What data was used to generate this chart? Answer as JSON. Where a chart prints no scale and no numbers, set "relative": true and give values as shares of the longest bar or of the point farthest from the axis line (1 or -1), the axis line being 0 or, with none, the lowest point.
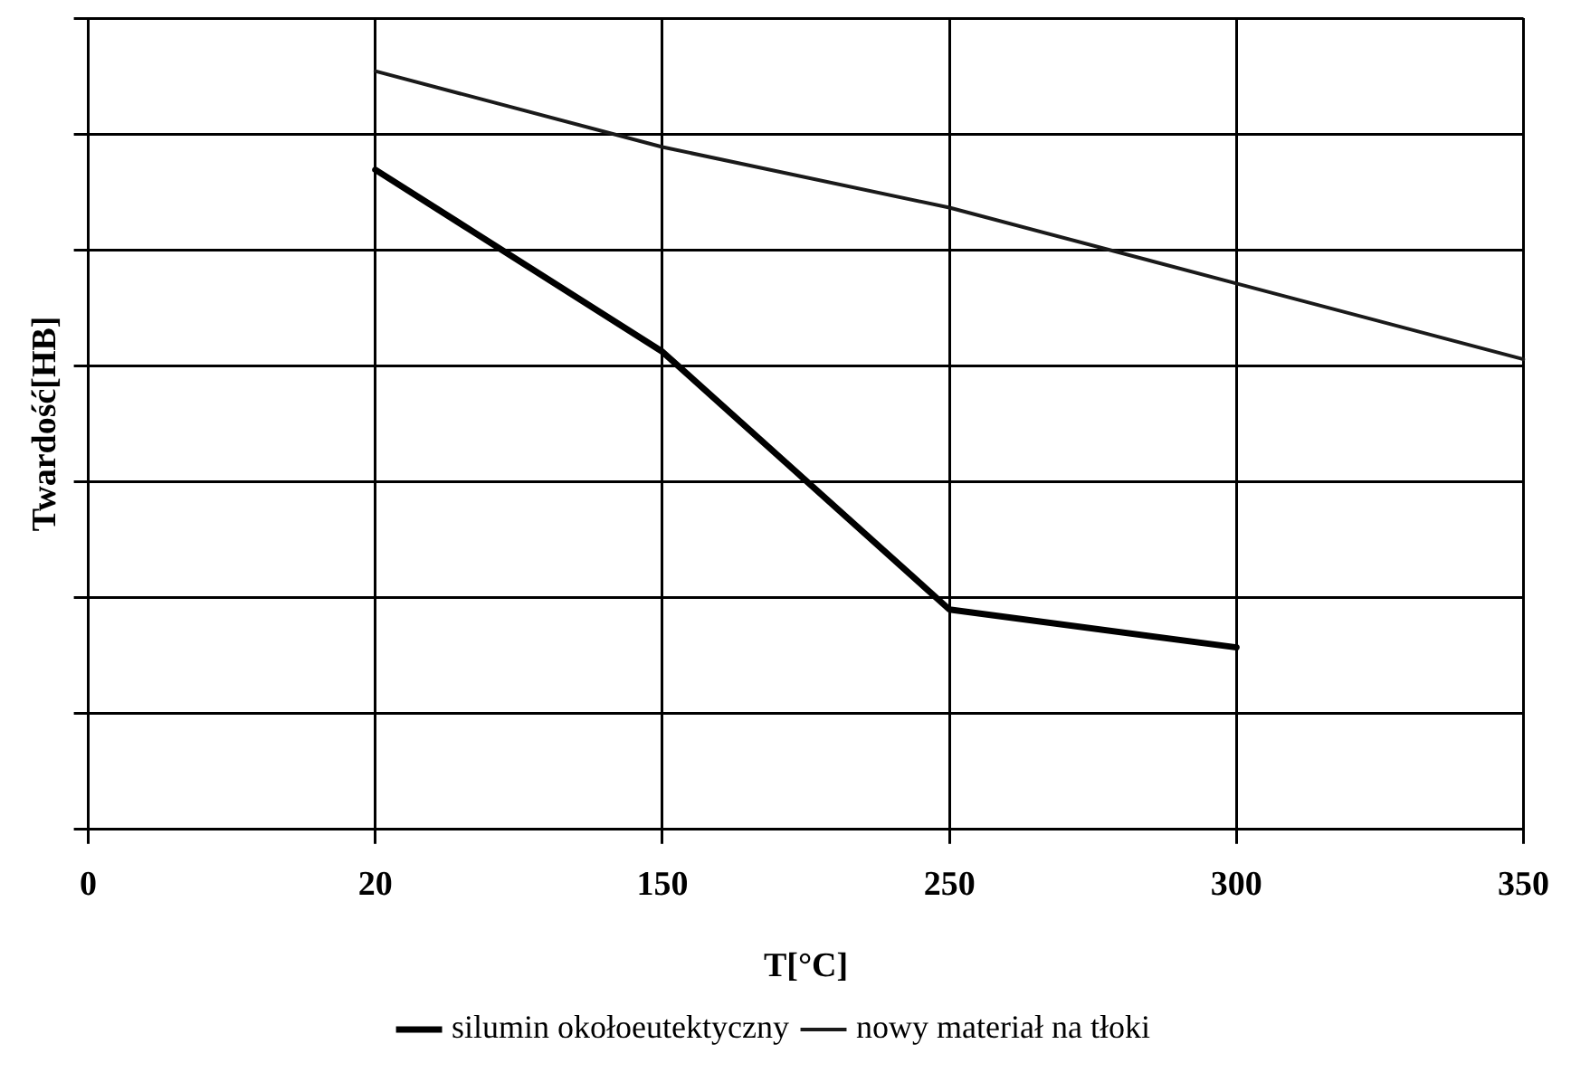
{
  "chart_data": {
    "type": "line",
    "xlabel": "T[°C]",
    "ylabel": "Twardość[HB]",
    "relative": true,
    "grid": true,
    "legend": "bottom",
    "marker": "none",
    "line_style": "solid",
    "categories": [
      "0",
      "20",
      "150",
      "250",
      "300",
      "350"
    ],
    "series": [
      {
        "name": "silumin okołoeutektyczny",
        "color": "#000000",
        "values": [
          null,
          0.87,
          0.63,
          0.29,
          0.24,
          null
        ]
      },
      {
        "name": "nowy materiał na tłoki",
        "color": "#1a1a1a",
        "values": [
          null,
          1,
          0.9,
          0.82,
          0.72,
          0.62
        ]
      }
    ]
  }
}
